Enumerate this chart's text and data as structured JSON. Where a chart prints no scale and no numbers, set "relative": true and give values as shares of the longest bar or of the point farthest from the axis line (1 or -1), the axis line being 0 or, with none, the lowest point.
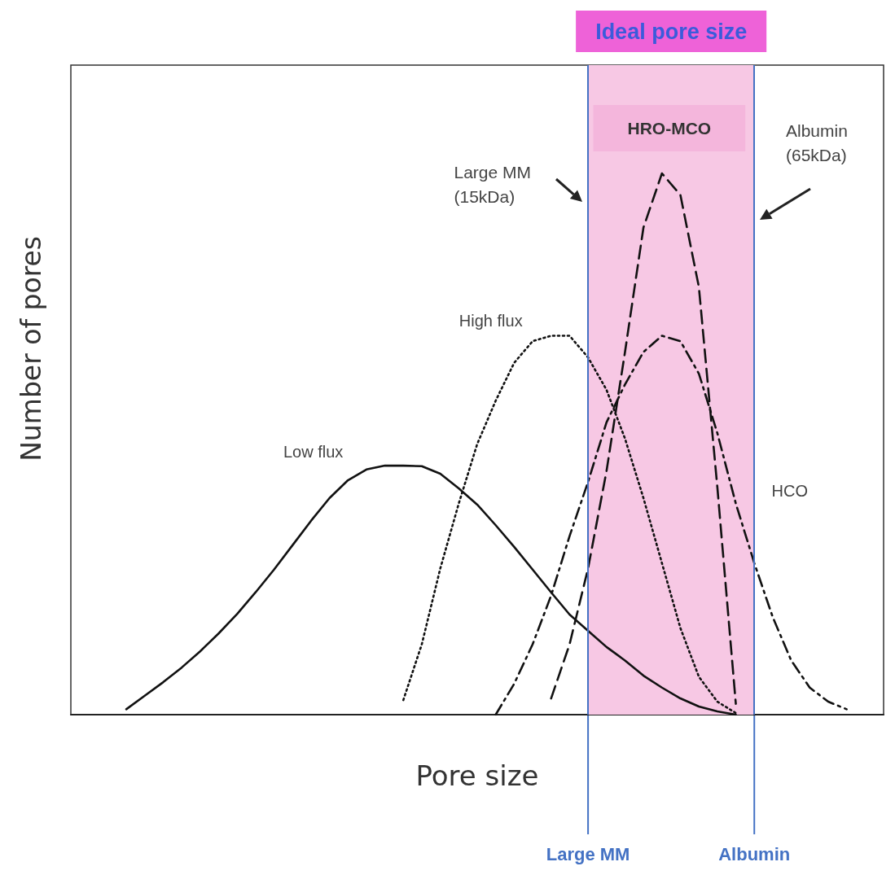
{
  "chart_data": {
    "type": "line",
    "relative": true,
    "xlabel": "Pore size",
    "ylabel": "Number of pores",
    "categories": [
      null,
      null,
      null,
      null,
      null,
      null,
      null,
      null,
      null,
      null,
      null,
      null,
      null,
      null,
      null,
      null,
      null,
      null,
      null,
      null,
      null,
      null,
      null,
      null,
      null,
      null,
      null,
      null,
      null,
      null,
      null,
      null,
      null,
      null,
      null,
      null,
      null,
      null,
      null,
      null,
      null,
      null,
      null,
      null,
      null
    ],
    "series": [
      {
        "name": "Low flux",
        "color": "#111111",
        "line_style": "solid",
        "values": [
          null,
          null,
          null,
          0.01,
          0.035,
          0.06,
          0.087,
          0.117,
          0.15,
          0.186,
          0.226,
          0.268,
          0.313,
          0.358,
          0.4,
          0.433,
          0.453,
          0.46,
          0.46,
          0.459,
          0.445,
          0.418,
          0.388,
          0.35,
          0.31,
          0.268,
          0.226,
          0.185,
          0.155,
          0.125,
          0.1,
          0.072,
          0.05,
          0.03,
          0.015,
          0.006,
          0,
          null,
          null,
          null,
          null,
          null,
          null,
          null,
          null
        ]
      },
      {
        "name": "High flux",
        "color": "#111111",
        "line_style": "dotted",
        "values": [
          null,
          null,
          null,
          null,
          null,
          null,
          null,
          null,
          null,
          null,
          null,
          null,
          null,
          null,
          null,
          null,
          null,
          null,
          0.027,
          0.13,
          0.27,
          0.39,
          0.5,
          0.58,
          0.65,
          0.69,
          0.7,
          0.7,
          0.66,
          0.6,
          0.51,
          0.4,
          0.28,
          0.16,
          0.07,
          0.024,
          0.003,
          null,
          null,
          null,
          null,
          null,
          null,
          null,
          null
        ]
      },
      {
        "name": "HCO",
        "color": "#111111",
        "line_style": "dashdot",
        "values": [
          null,
          null,
          null,
          null,
          null,
          null,
          null,
          null,
          null,
          null,
          null,
          null,
          null,
          null,
          null,
          null,
          null,
          null,
          null,
          null,
          null,
          null,
          null,
          0,
          0.057,
          0.13,
          0.22,
          0.33,
          0.43,
          0.54,
          0.61,
          0.67,
          0.7,
          0.69,
          0.63,
          0.52,
          0.39,
          0.28,
          0.18,
          0.1,
          0.05,
          0.024,
          0.01,
          null,
          null
        ]
      },
      {
        "name": "HRO-MCO",
        "color": "#111111",
        "line_style": "dashed",
        "values": [
          null,
          null,
          null,
          null,
          null,
          null,
          null,
          null,
          null,
          null,
          null,
          null,
          null,
          null,
          null,
          null,
          null,
          null,
          null,
          null,
          null,
          null,
          null,
          null,
          null,
          null,
          0.03,
          0.13,
          0.27,
          0.45,
          0.67,
          0.9,
          1,
          0.96,
          0.79,
          0.42,
          0.02,
          null,
          null,
          null,
          null,
          null,
          null,
          null,
          null
        ]
      }
    ],
    "annotations": [
      "Large MM\n(15kDa)",
      "Albumin\n(65kDa)",
      "Ideal pore size",
      "Large MM",
      "Albumin"
    ],
    "marker": "none",
    "grid": false,
    "legend": false
  }
}
